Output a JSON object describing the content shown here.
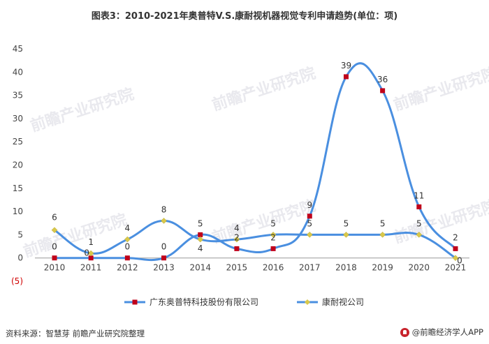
{
  "title": "图表3：2010-2021年奥普特V.S.康耐视机器视觉专利申请趋势(单位：项)",
  "source": "资料来源：智慧芽 前瞻产业研究院整理",
  "brand": "@前瞻经济学人APP",
  "watermark": "前瞻产业研究院",
  "colors": {
    "series1_line": "#4a8fe0",
    "series1_marker": "#c0001a",
    "series2_line": "#4a8fe0",
    "series2_marker": "#d9c84a",
    "negative_label": "#d00000"
  },
  "chart_data": {
    "type": "line",
    "smooth": true,
    "title": "图表3：2010-2021年奥普特V.S.康耐视机器视觉专利申请趋势(单位：项)",
    "categories": [
      "2010",
      "2011",
      "2012",
      "2013",
      "2014",
      "2015",
      "2016",
      "2017",
      "2018",
      "2019",
      "2020",
      "2021"
    ],
    "y_ticks": [
      "45",
      "40",
      "35",
      "30",
      "25",
      "20",
      "15",
      "10",
      "5",
      "0",
      "(5)"
    ],
    "ylim": [
      -5,
      45
    ],
    "grid": false,
    "legend_position": "bottom",
    "series": [
      {
        "name": "广东奥普特科技股份有限公司",
        "values": [
          0,
          0,
          0,
          0,
          5,
          2,
          2,
          9,
          39,
          36,
          11,
          2
        ]
      },
      {
        "name": "康耐视公司",
        "values": [
          6,
          1,
          4,
          8,
          4,
          4,
          5,
          5,
          5,
          5,
          5,
          0
        ]
      }
    ]
  }
}
